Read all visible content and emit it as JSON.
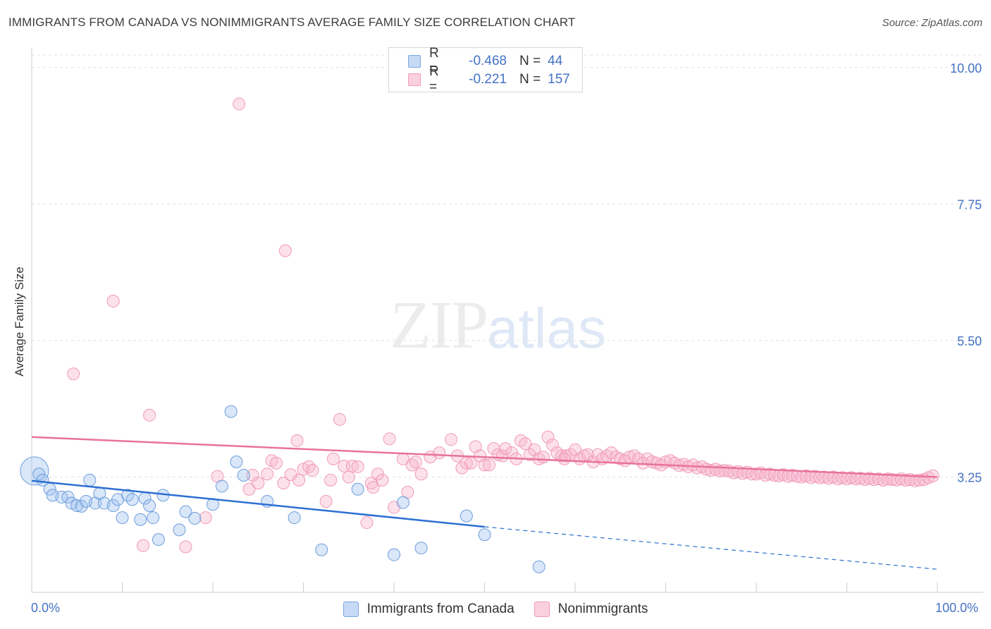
{
  "header": {
    "title": "IMMIGRANTS FROM CANADA VS NONIMMIGRANTS AVERAGE FAMILY SIZE CORRELATION CHART",
    "source": "Source: ZipAtlas.com"
  },
  "watermark": {
    "zip": "ZIP",
    "atlas": "atlas"
  },
  "legend": {
    "r_label": "R =",
    "n_label": "N =",
    "rows": [
      {
        "r": "-0.468",
        "n": "44"
      },
      {
        "r": "-0.221",
        "n": "157"
      }
    ]
  },
  "chart_data": {
    "type": "scatter",
    "title": "IMMIGRANTS FROM CANADA VS NONIMMIGRANTS AVERAGE FAMILY SIZE CORRELATION CHART",
    "xlabel": "",
    "ylabel": "Average Family Size",
    "xlim": [
      0,
      100
    ],
    "ylim": [
      1.35,
      10.3
    ],
    "x_tick_labels": [
      "0.0%",
      "100.0%"
    ],
    "y_ticks": [
      3.25,
      5.5,
      7.75,
      10.0
    ],
    "y_tick_labels": [
      "3.25",
      "5.50",
      "7.75",
      "10.00"
    ],
    "grid": true,
    "legend_position": "bottom-center",
    "colors": {
      "immigrants": "#7ba7e0",
      "nonimmigrants": "#f19bb8",
      "blue_line": "#2d6fd2",
      "pink_line": "#e8739a"
    },
    "series": [
      {
        "name": "Immigrants from Canada",
        "R": -0.468,
        "N": 44,
        "trend": {
          "x": [
            0,
            50
          ],
          "y": [
            3.19,
            2.43
          ],
          "dashed_to": [
            100,
            1.73
          ]
        },
        "points": [
          [
            0.3,
            3.35
          ],
          [
            0.8,
            3.3
          ],
          [
            1.2,
            3.2
          ],
          [
            2.0,
            3.05
          ],
          [
            2.3,
            2.95
          ],
          [
            3.3,
            2.92
          ],
          [
            4.0,
            2.92
          ],
          [
            4.4,
            2.82
          ],
          [
            5.0,
            2.78
          ],
          [
            5.5,
            2.77
          ],
          [
            6.0,
            2.85
          ],
          [
            6.4,
            3.2
          ],
          [
            7.0,
            2.82
          ],
          [
            7.5,
            2.98
          ],
          [
            8.0,
            2.82
          ],
          [
            9.0,
            2.78
          ],
          [
            9.5,
            2.88
          ],
          [
            10.0,
            2.58
          ],
          [
            10.6,
            2.95
          ],
          [
            11.1,
            2.88
          ],
          [
            12.0,
            2.55
          ],
          [
            12.5,
            2.9
          ],
          [
            13.0,
            2.78
          ],
          [
            13.4,
            2.58
          ],
          [
            14.0,
            2.22
          ],
          [
            14.5,
            2.95
          ],
          [
            16.3,
            2.38
          ],
          [
            17.0,
            2.68
          ],
          [
            18.0,
            2.57
          ],
          [
            20.0,
            2.8
          ],
          [
            21.0,
            3.1
          ],
          [
            22.0,
            4.33
          ],
          [
            22.6,
            3.5
          ],
          [
            23.4,
            3.28
          ],
          [
            26.0,
            2.85
          ],
          [
            29.0,
            2.58
          ],
          [
            32.0,
            2.05
          ],
          [
            36.0,
            3.05
          ],
          [
            40.0,
            1.97
          ],
          [
            41.0,
            2.83
          ],
          [
            43.0,
            2.08
          ],
          [
            48.0,
            2.61
          ],
          [
            50.0,
            2.3
          ],
          [
            56.0,
            1.77
          ]
        ]
      },
      {
        "name": "Nonimmigrants",
        "R": -0.221,
        "N": 157,
        "trend": {
          "x": [
            0,
            100
          ],
          "y": [
            3.91,
            3.25
          ]
        },
        "points": [
          [
            4.6,
            4.95
          ],
          [
            9.0,
            6.15
          ],
          [
            12.3,
            2.12
          ],
          [
            13.0,
            4.27
          ],
          [
            17.0,
            2.1
          ],
          [
            19.2,
            2.58
          ],
          [
            20.5,
            3.26
          ],
          [
            22.9,
            9.4
          ],
          [
            24.0,
            3.05
          ],
          [
            24.4,
            3.28
          ],
          [
            25.0,
            3.15
          ],
          [
            26.0,
            3.3
          ],
          [
            26.5,
            3.52
          ],
          [
            27.0,
            3.48
          ],
          [
            27.8,
            3.15
          ],
          [
            28.0,
            6.98
          ],
          [
            28.6,
            3.29
          ],
          [
            29.3,
            3.85
          ],
          [
            29.5,
            3.2
          ],
          [
            30.0,
            3.38
          ],
          [
            30.6,
            3.42
          ],
          [
            31.0,
            3.36
          ],
          [
            32.5,
            2.85
          ],
          [
            33.0,
            3.2
          ],
          [
            33.3,
            3.55
          ],
          [
            34.0,
            4.2
          ],
          [
            34.5,
            3.43
          ],
          [
            35.0,
            3.25
          ],
          [
            35.4,
            3.43
          ],
          [
            36.0,
            3.42
          ],
          [
            37.0,
            2.5
          ],
          [
            37.5,
            3.15
          ],
          [
            37.7,
            3.08
          ],
          [
            38.2,
            3.3
          ],
          [
            38.7,
            3.2
          ],
          [
            39.5,
            3.88
          ],
          [
            40.0,
            2.75
          ],
          [
            41.0,
            3.55
          ],
          [
            41.5,
            3.0
          ],
          [
            42.0,
            3.45
          ],
          [
            42.4,
            3.5
          ],
          [
            43.0,
            3.3
          ],
          [
            44.0,
            3.58
          ],
          [
            45.0,
            3.65
          ],
          [
            46.3,
            3.87
          ],
          [
            47.0,
            3.6
          ],
          [
            47.5,
            3.4
          ],
          [
            48.0,
            3.48
          ],
          [
            48.5,
            3.48
          ],
          [
            49.0,
            3.75
          ],
          [
            49.5,
            3.6
          ],
          [
            50.0,
            3.45
          ],
          [
            50.5,
            3.45
          ],
          [
            51.0,
            3.72
          ],
          [
            51.5,
            3.62
          ],
          [
            52.0,
            3.6
          ],
          [
            52.3,
            3.72
          ],
          [
            53.0,
            3.65
          ],
          [
            53.5,
            3.55
          ],
          [
            54.0,
            3.85
          ],
          [
            54.5,
            3.8
          ],
          [
            55.0,
            3.62
          ],
          [
            55.5,
            3.7
          ],
          [
            56.0,
            3.55
          ],
          [
            56.5,
            3.58
          ],
          [
            57.0,
            3.91
          ],
          [
            57.5,
            3.78
          ],
          [
            58.0,
            3.65
          ],
          [
            58.5,
            3.6
          ],
          [
            59.0,
            3.6
          ],
          [
            59.5,
            3.62
          ],
          [
            60.0,
            3.7
          ],
          [
            60.5,
            3.55
          ],
          [
            61.0,
            3.6
          ],
          [
            61.4,
            3.62
          ],
          [
            62.0,
            3.5
          ],
          [
            62.5,
            3.62
          ],
          [
            63.0,
            3.55
          ],
          [
            63.5,
            3.6
          ],
          [
            64.0,
            3.65
          ],
          [
            64.5,
            3.58
          ],
          [
            65.0,
            3.55
          ],
          [
            65.5,
            3.52
          ],
          [
            66.0,
            3.58
          ],
          [
            66.5,
            3.6
          ],
          [
            67.0,
            3.55
          ],
          [
            67.5,
            3.48
          ],
          [
            68.0,
            3.55
          ],
          [
            68.5,
            3.5
          ],
          [
            69.0,
            3.48
          ],
          [
            69.5,
            3.45
          ],
          [
            70.0,
            3.5
          ],
          [
            70.5,
            3.52
          ],
          [
            71.0,
            3.48
          ],
          [
            71.5,
            3.44
          ],
          [
            72.0,
            3.46
          ],
          [
            72.5,
            3.42
          ],
          [
            73.0,
            3.45
          ],
          [
            73.5,
            3.4
          ],
          [
            74.0,
            3.42
          ],
          [
            74.5,
            3.38
          ],
          [
            75.0,
            3.36
          ],
          [
            75.5,
            3.38
          ],
          [
            76.0,
            3.35
          ],
          [
            76.5,
            3.36
          ],
          [
            77.0,
            3.35
          ],
          [
            77.5,
            3.32
          ],
          [
            78.0,
            3.34
          ],
          [
            78.5,
            3.31
          ],
          [
            79.0,
            3.33
          ],
          [
            79.5,
            3.3
          ],
          [
            80.0,
            3.3
          ],
          [
            80.5,
            3.32
          ],
          [
            81.0,
            3.28
          ],
          [
            81.5,
            3.3
          ],
          [
            82.0,
            3.28
          ],
          [
            82.5,
            3.27
          ],
          [
            83.0,
            3.29
          ],
          [
            83.5,
            3.26
          ],
          [
            84.0,
            3.28
          ],
          [
            84.5,
            3.26
          ],
          [
            85.0,
            3.25
          ],
          [
            85.5,
            3.27
          ],
          [
            86.0,
            3.24
          ],
          [
            86.5,
            3.26
          ],
          [
            87.0,
            3.24
          ],
          [
            87.5,
            3.25
          ],
          [
            88.0,
            3.23
          ],
          [
            88.5,
            3.25
          ],
          [
            89.0,
            3.22
          ],
          [
            89.5,
            3.24
          ],
          [
            90.0,
            3.22
          ],
          [
            90.5,
            3.24
          ],
          [
            91.0,
            3.22
          ],
          [
            91.5,
            3.23
          ],
          [
            92.0,
            3.21
          ],
          [
            92.5,
            3.23
          ],
          [
            93.0,
            3.21
          ],
          [
            93.5,
            3.22
          ],
          [
            94.0,
            3.2
          ],
          [
            94.5,
            3.22
          ],
          [
            95.0,
            3.21
          ],
          [
            95.5,
            3.2
          ],
          [
            96.0,
            3.22
          ],
          [
            96.5,
            3.2
          ],
          [
            97.0,
            3.21
          ],
          [
            97.5,
            3.19
          ],
          [
            98.0,
            3.2
          ],
          [
            98.5,
            3.21
          ],
          [
            99.0,
            3.24
          ],
          [
            99.5,
            3.27
          ],
          [
            58.8,
            3.55
          ]
        ]
      }
    ]
  }
}
